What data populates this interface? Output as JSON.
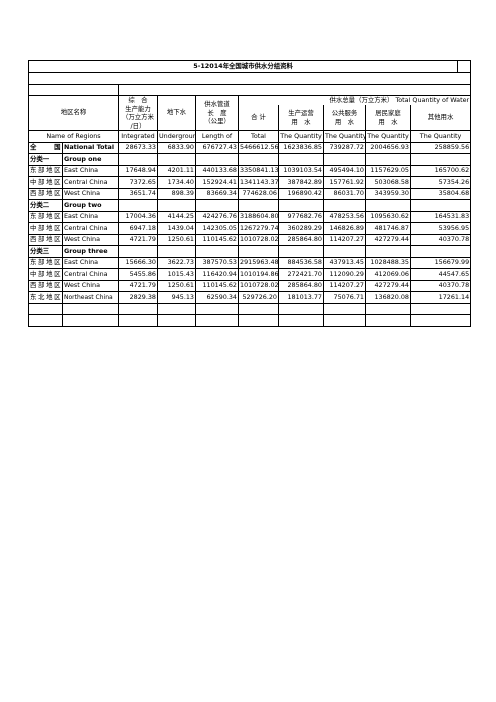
{
  "title": "5-12014年全国城市供水分组资料",
  "header": {
    "region_cn": "地区名称",
    "capacity": [
      "综　合",
      "生产能力",
      "（万立方米",
      "/日）"
    ],
    "underground": "地下水",
    "pipe": [
      "供水管道",
      "长　度",
      "（公里）"
    ],
    "total_group": "供水总量（万立方米） Total Quantity of Water",
    "total_cn": "合 计",
    "production": [
      "生产运营",
      "用　水"
    ],
    "public": [
      "公共服务",
      "用　水"
    ],
    "household": [
      "居民家庭",
      "用　水"
    ],
    "other": "其他用水"
  },
  "english_header": {
    "region": "Name of Regions",
    "capacity": "Integrated",
    "underground": "Undergroun",
    "pipe": "Length of",
    "total": "Total",
    "production": "The Quantity",
    "public": "The Quantity",
    "household": "The Quantity",
    "other": "The Quantity"
  },
  "rows": [
    {
      "type": "national",
      "cn": "全　　国",
      "en": "National Total",
      "v": [
        "28673.33",
        "6833.90",
        "676727.43",
        "5466612.56",
        "1623836.85",
        "739287.72",
        "2004656.93",
        "258859.56"
      ]
    },
    {
      "type": "group",
      "cn": "分类一",
      "en": "Group one"
    },
    {
      "type": "data",
      "cn": "东部地区",
      "en": "East China",
      "v": [
        "17648.94",
        "4201.11",
        "440133.68",
        "3350841.13",
        "1039103.54",
        "495494.10",
        "1157629.05",
        "165700.62"
      ]
    },
    {
      "type": "data",
      "cn": "中部地区",
      "en": "Central China",
      "v": [
        "7372.65",
        "1734.40",
        "152924.41",
        "1341143.37",
        "387842.89",
        "157761.92",
        "503068.58",
        "57354.26"
      ]
    },
    {
      "type": "data",
      "cn": "西部地区",
      "en": "West China",
      "v": [
        "3651.74",
        "898.39",
        "83669.34",
        "774628.06",
        "196890.42",
        "86031.70",
        "343959.30",
        "35804.68"
      ]
    },
    {
      "type": "group",
      "cn": "分类二",
      "en": "Group two"
    },
    {
      "type": "data",
      "cn": "东部地区",
      "en": "East China",
      "v": [
        "17004.36",
        "4144.25",
        "424276.76",
        "3188604.80",
        "977682.76",
        "478253.56",
        "1095630.62",
        "164531.83"
      ]
    },
    {
      "type": "data",
      "cn": "中部地区",
      "en": "Central China",
      "v": [
        "6947.18",
        "1439.04",
        "142305.05",
        "1267279.74",
        "360289.29",
        "146826.89",
        "481746.87",
        "53956.95"
      ]
    },
    {
      "type": "data",
      "cn": "西部地区",
      "en": "West China",
      "v": [
        "4721.79",
        "1250.61",
        "110145.62",
        "1010728.02",
        "285864.80",
        "114207.27",
        "427279.44",
        "40370.78"
      ]
    },
    {
      "type": "group",
      "cn": "分类三",
      "en": "Group three"
    },
    {
      "type": "data",
      "cn": "东部地区",
      "en": "East China",
      "v": [
        "15666.30",
        "3622.73",
        "387570.53",
        "2915963.48",
        "884536.58",
        "437913.45",
        "1028488.35",
        "156679.99"
      ]
    },
    {
      "type": "data",
      "cn": "中部地区",
      "en": "Central China",
      "v": [
        "5455.86",
        "1015.43",
        "116420.94",
        "1010194.86",
        "272421.70",
        "112090.29",
        "412069.06",
        "44547.65"
      ]
    },
    {
      "type": "data",
      "cn": "西部地区",
      "en": "West China",
      "v": [
        "4721.79",
        "1250.61",
        "110145.62",
        "1010728.02",
        "285864.80",
        "114207.27",
        "427279.44",
        "40370.78"
      ]
    },
    {
      "type": "data",
      "cn": "东北地区",
      "en": "Northeast China",
      "wrap": true,
      "v": [
        "2829.38",
        "945.13",
        "62590.34",
        "529726.20",
        "181013.77",
        "75076.71",
        "136820.08",
        "17261.14"
      ]
    }
  ]
}
